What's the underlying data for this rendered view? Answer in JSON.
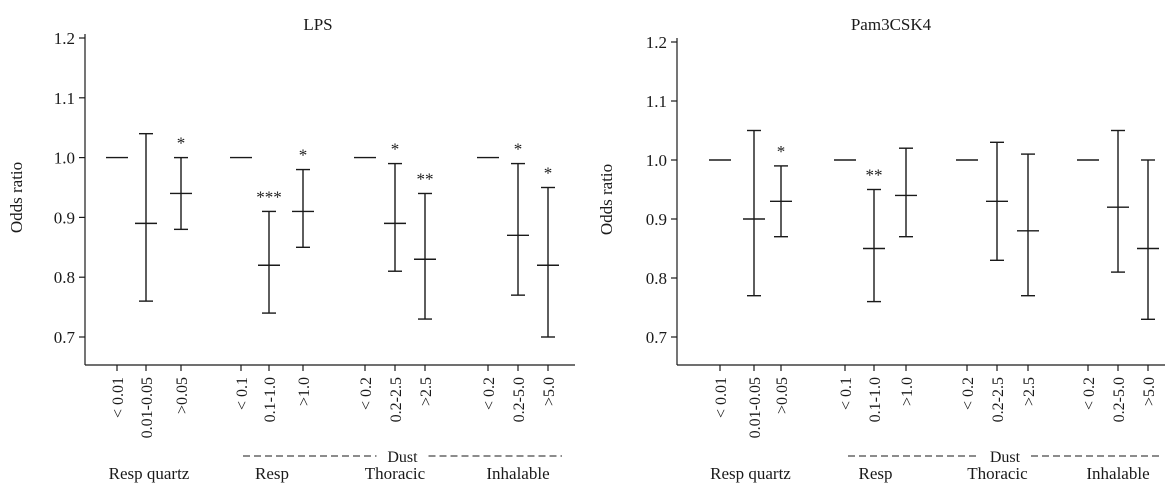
{
  "chart_data": [
    {
      "type": "errorbar",
      "title": "LPS",
      "ylabel": "Odds ratio",
      "ylim": [
        0.65,
        1.2
      ],
      "yticks": [
        "0.7",
        "0.8",
        "0.9",
        "1.0",
        "1.1",
        "1.2"
      ],
      "groups": [
        {
          "label": "Resp quartz",
          "categories": [
            "< 0.01",
            "0.01-0.05",
            ">0.05"
          ]
        },
        {
          "label": "Resp",
          "categories": [
            "< 0.1",
            "0.1-1.0",
            ">1.0"
          ]
        },
        {
          "label": "Thoracic",
          "categories": [
            "< 0.2",
            "0.2-2.5",
            ">2.5"
          ]
        },
        {
          "label": "Inhalable",
          "categories": [
            "< 0.2",
            "0.2-5.0",
            ">5.0"
          ]
        }
      ],
      "dust_label": "Dust",
      "points": [
        {
          "est": 1.0,
          "lo": 1.0,
          "hi": 1.0,
          "sig": ""
        },
        {
          "est": 0.89,
          "lo": 0.76,
          "hi": 1.04,
          "sig": ""
        },
        {
          "est": 0.94,
          "lo": 0.88,
          "hi": 1.0,
          "sig": "*"
        },
        {
          "est": 1.0,
          "lo": 1.0,
          "hi": 1.0,
          "sig": ""
        },
        {
          "est": 0.82,
          "lo": 0.74,
          "hi": 0.91,
          "sig": "***"
        },
        {
          "est": 0.91,
          "lo": 0.85,
          "hi": 0.98,
          "sig": "*"
        },
        {
          "est": 1.0,
          "lo": 1.0,
          "hi": 1.0,
          "sig": ""
        },
        {
          "est": 0.89,
          "lo": 0.81,
          "hi": 0.99,
          "sig": "*"
        },
        {
          "est": 0.83,
          "lo": 0.73,
          "hi": 0.94,
          "sig": "**"
        },
        {
          "est": 1.0,
          "lo": 1.0,
          "hi": 1.0,
          "sig": ""
        },
        {
          "est": 0.87,
          "lo": 0.77,
          "hi": 0.99,
          "sig": "*"
        },
        {
          "est": 0.82,
          "lo": 0.7,
          "hi": 0.95,
          "sig": "*"
        }
      ]
    },
    {
      "type": "errorbar",
      "title": "Pam3CSK4",
      "ylabel": "Odds ratio",
      "ylim": [
        0.65,
        1.2
      ],
      "yticks": [
        "0.7",
        "0.8",
        "0.9",
        "1.0",
        "1.1",
        "1.2"
      ],
      "groups": [
        {
          "label": "Resp quartz",
          "categories": [
            "< 0.01",
            "0.01-0.05",
            ">0.05"
          ]
        },
        {
          "label": "Resp",
          "categories": [
            "< 0.1",
            "0.1-1.0",
            ">1.0"
          ]
        },
        {
          "label": "Thoracic",
          "categories": [
            "< 0.2",
            "0.2-2.5",
            ">2.5"
          ]
        },
        {
          "label": "Inhalable",
          "categories": [
            "< 0.2",
            "0.2-5.0",
            ">5.0"
          ]
        }
      ],
      "dust_label": "Dust",
      "points": [
        {
          "est": 1.0,
          "lo": 1.0,
          "hi": 1.0,
          "sig": ""
        },
        {
          "est": 0.9,
          "lo": 0.77,
          "hi": 1.05,
          "sig": ""
        },
        {
          "est": 0.93,
          "lo": 0.87,
          "hi": 0.99,
          "sig": "*"
        },
        {
          "est": 1.0,
          "lo": 1.0,
          "hi": 1.0,
          "sig": ""
        },
        {
          "est": 0.85,
          "lo": 0.76,
          "hi": 0.95,
          "sig": "**"
        },
        {
          "est": 0.94,
          "lo": 0.87,
          "hi": 1.02,
          "sig": ""
        },
        {
          "est": 1.0,
          "lo": 1.0,
          "hi": 1.0,
          "sig": ""
        },
        {
          "est": 0.93,
          "lo": 0.83,
          "hi": 1.03,
          "sig": ""
        },
        {
          "est": 0.88,
          "lo": 0.77,
          "hi": 1.01,
          "sig": ""
        },
        {
          "est": 1.0,
          "lo": 1.0,
          "hi": 1.0,
          "sig": ""
        },
        {
          "est": 0.92,
          "lo": 0.81,
          "hi": 1.05,
          "sig": ""
        },
        {
          "est": 0.85,
          "lo": 0.73,
          "hi": 1.0,
          "sig": ""
        }
      ]
    }
  ]
}
